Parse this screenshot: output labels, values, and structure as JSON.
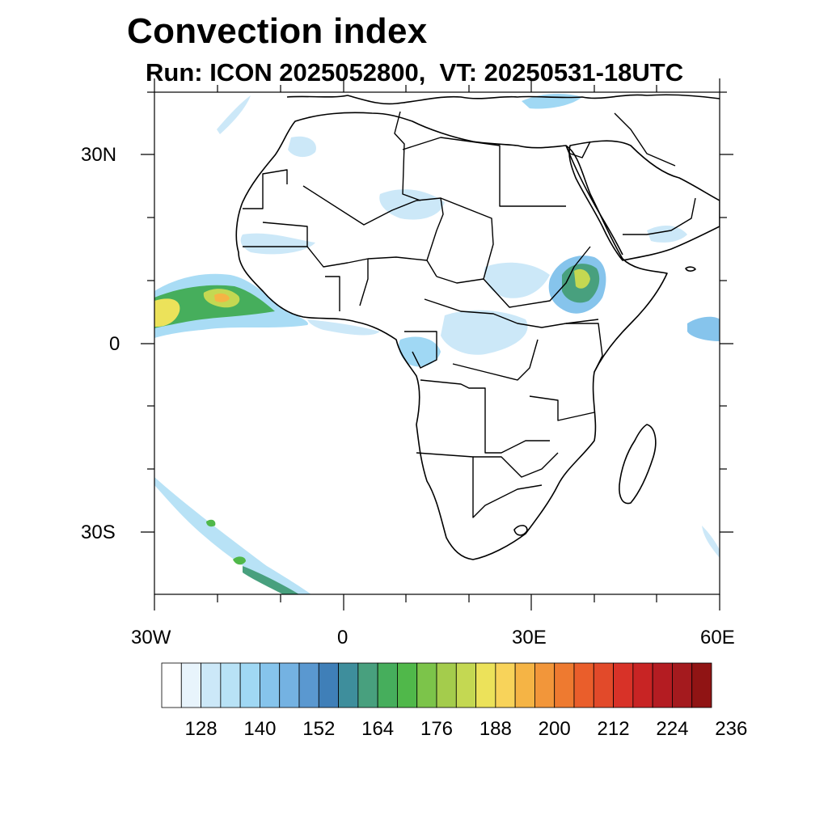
{
  "title": "Convection index",
  "subtitle": "Run: ICON 2025052800,  VT: 20250531-18UTC",
  "map": {
    "projection": "cylindrical equidistant",
    "lon_range": [
      -30,
      60
    ],
    "lat_range": [
      -40,
      40
    ],
    "lat_labels": [
      "30N",
      "0",
      "30S"
    ],
    "lon_labels": [
      "30W",
      "0",
      "30E",
      "60E"
    ]
  },
  "colorbar": {
    "colors": [
      "#ffffff",
      "#e8f4fc",
      "#cce8f8",
      "#b8e2f6",
      "#a0d8f4",
      "#86c4ec",
      "#74b2e2",
      "#5a98d0",
      "#3f7fb8",
      "#3e8e9c",
      "#48a07e",
      "#46ae5c",
      "#50b84a",
      "#7cc44a",
      "#a4cc4c",
      "#c4d852",
      "#ece25a",
      "#f8d35a",
      "#f5b445",
      "#f2963a",
      "#ee7a30",
      "#ea5e2b",
      "#e24a2a",
      "#d83228",
      "#c82424",
      "#b41c22",
      "#a41a1e",
      "#901414"
    ],
    "tick_labels": [
      "128",
      "140",
      "152",
      "164",
      "176",
      "188",
      "200",
      "212",
      "224",
      "236"
    ]
  }
}
